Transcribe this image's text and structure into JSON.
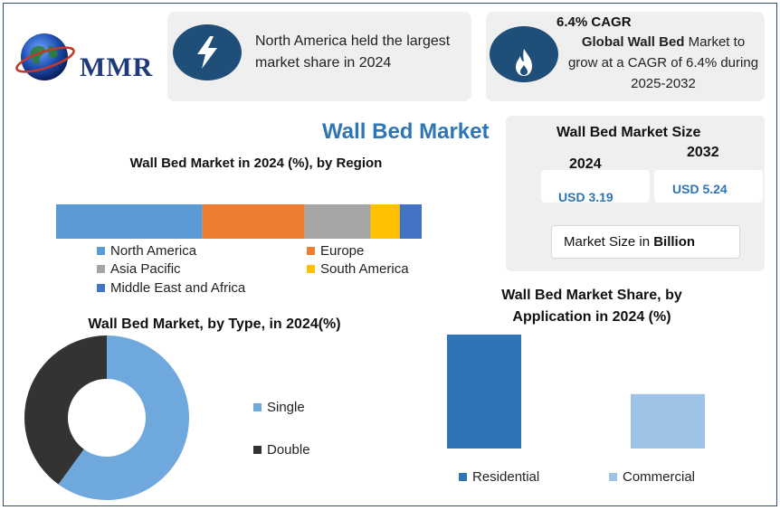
{
  "logo": {
    "text": "MMR"
  },
  "highlight_left": {
    "text": "North America held the largest market share in 2024",
    "icon": "lightning-icon"
  },
  "highlight_right": {
    "heading": "6.4% CAGR",
    "text_bold": "Global Wall Bed",
    "text_rest": " Market to grow at a CAGR of 6.4% during 2025-2032",
    "icon": "flame-icon"
  },
  "title": "Wall Bed Market",
  "market_size": {
    "title": "Wall Bed Market Size",
    "year_a": "2024",
    "year_b": "2032",
    "value_a": "USD 3.19",
    "value_b": "USD 5.24",
    "unit_prefix": "Market Size in ",
    "unit_bold": "Billion"
  },
  "colors": {
    "north_america": "#5b9bd5",
    "europe": "#ed7d31",
    "asia_pacific": "#a5a5a5",
    "south_america": "#ffc000",
    "middle_east_africa": "#4472c4",
    "single": "#6fa8dc",
    "double": "#333333",
    "residential": "#2e75b6",
    "commercial": "#9dc3e6"
  },
  "chart_data": [
    {
      "type": "bar",
      "orientation": "horizontal-stacked",
      "title": "Wall Bed Market in 2024 (%), by Region",
      "categories": [
        "North America",
        "Europe",
        "Asia Pacific",
        "South America",
        "Middle East and Africa"
      ],
      "values": [
        40,
        28,
        18,
        8,
        6
      ],
      "legend_position": "bottom"
    },
    {
      "type": "pie",
      "style": "donut",
      "title": "Wall Bed Market, by Type, in 2024(%)",
      "categories": [
        "Single",
        "Double"
      ],
      "values": [
        60,
        40
      ],
      "legend_position": "right"
    },
    {
      "type": "bar",
      "title": "Wall Bed Market Share, by Application in 2024 (%)",
      "categories": [
        "Residential",
        "Commercial"
      ],
      "values": [
        65,
        31
      ],
      "ylim": [
        0,
        70
      ],
      "legend_position": "bottom"
    }
  ]
}
